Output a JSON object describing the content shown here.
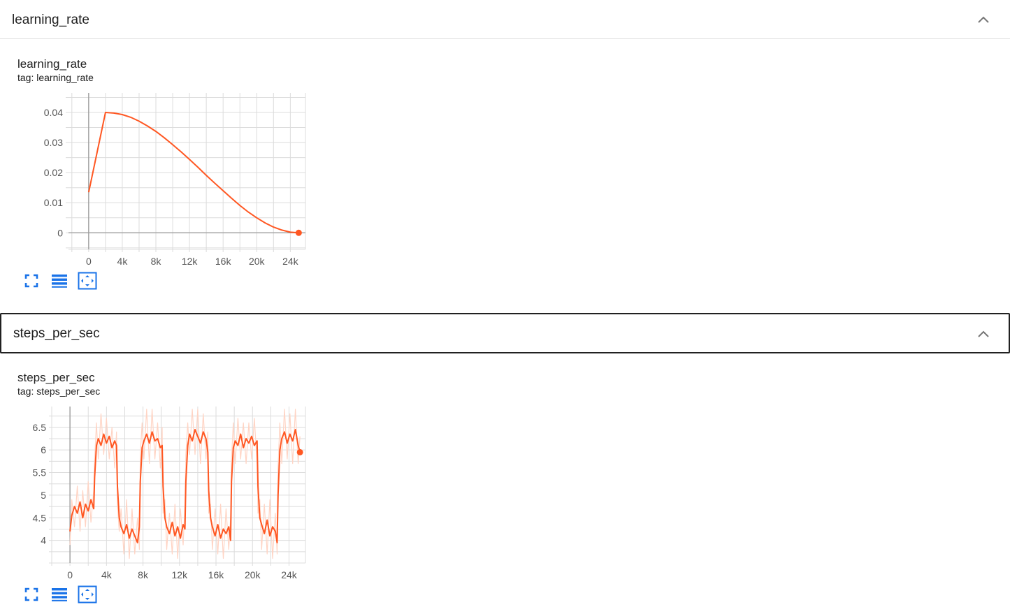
{
  "sections": [
    {
      "header": "learning_rate",
      "card_title": "learning_rate",
      "card_tag": "tag: learning_rate"
    },
    {
      "header": "steps_per_sec",
      "card_title": "steps_per_sec",
      "card_tag": "tag: steps_per_sec"
    }
  ],
  "toolbar_icons": [
    "fullscreen-icon",
    "data-table-icon",
    "fit-domain-icon"
  ],
  "colors": {
    "series": "#ff5722",
    "series_light": "#ffd4c4",
    "grid": "#dcdcdc",
    "axis": "#9e9e9e",
    "toolbar": "#1a73e8",
    "header_line": "#e0e0e0"
  },
  "chart_data": [
    {
      "type": "line",
      "title": "learning_rate",
      "xlim": [
        -2400,
        25800
      ],
      "ylim": [
        -0.0055,
        0.0465
      ],
      "x_ticks": [
        0,
        4000,
        8000,
        12000,
        16000,
        20000,
        24000
      ],
      "x_tick_labels": [
        "0",
        "4k",
        "8k",
        "12k",
        "16k",
        "20k",
        "24k"
      ],
      "y_ticks": [
        0,
        0.01,
        0.02,
        0.03,
        0.04
      ],
      "y_tick_labels": [
        "0",
        "0.01",
        "0.02",
        "0.03",
        "0.04"
      ],
      "grid": true,
      "series": [
        {
          "x": [
            0,
            2000,
            3000,
            4000,
            5000,
            6000,
            7000,
            8000,
            9000,
            10000,
            11000,
            12000,
            13000,
            14000,
            15000,
            16000,
            17000,
            18000,
            19000,
            20000,
            21000,
            22000,
            23000,
            24000,
            25000
          ],
          "y": [
            0.0135,
            0.04,
            0.0398,
            0.0393,
            0.0384,
            0.0371,
            0.0355,
            0.0337,
            0.0316,
            0.0293,
            0.0269,
            0.0244,
            0.0218,
            0.0191,
            0.0165,
            0.014,
            0.0115,
            0.0091,
            0.0069,
            0.005,
            0.0033,
            0.0019,
            0.0009,
            0.0002,
            0.0
          ]
        }
      ]
    },
    {
      "type": "line",
      "title": "steps_per_sec",
      "xlim": [
        -2000,
        25800
      ],
      "ylim": [
        3.5,
        6.96
      ],
      "x_ticks": [
        0,
        4000,
        8000,
        12000,
        16000,
        20000,
        24000
      ],
      "x_tick_labels": [
        "0",
        "4k",
        "8k",
        "12k",
        "16k",
        "20k",
        "24k"
      ],
      "y_ticks": [
        4,
        4.5,
        5,
        5.5,
        6,
        6.5
      ],
      "y_tick_labels": [
        "4",
        "4.5",
        "5",
        "5.5",
        "6",
        "6.5"
      ],
      "grid": true,
      "series": [
        {
          "name": "smoothed",
          "x": [
            0,
            200,
            500,
            800,
            1100,
            1400,
            1700,
            2000,
            2300,
            2600,
            2700,
            2900,
            3100,
            3400,
            3700,
            4000,
            4300,
            4600,
            4900,
            5100,
            5200,
            5400,
            5600,
            5900,
            6200,
            6500,
            6800,
            7100,
            7400,
            7600,
            7700,
            7900,
            8100,
            8400,
            8700,
            9000,
            9300,
            9600,
            9900,
            10100,
            10200,
            10400,
            10600,
            10900,
            11200,
            11500,
            11800,
            12100,
            12400,
            12600,
            12700,
            12900,
            13100,
            13400,
            13700,
            14000,
            14300,
            14600,
            14900,
            15100,
            15200,
            15400,
            15600,
            15900,
            16200,
            16500,
            16800,
            17100,
            17400,
            17600,
            17700,
            17900,
            18100,
            18400,
            18700,
            19000,
            19300,
            19600,
            19900,
            20200,
            20500,
            20600,
            20800,
            21000,
            21300,
            21600,
            21900,
            22200,
            22500,
            22700,
            22800,
            23000,
            23200,
            23500,
            23800,
            24100,
            24400,
            24700,
            25000,
            25200
          ],
          "y": [
            4.2,
            4.55,
            4.75,
            4.6,
            4.85,
            4.5,
            4.8,
            4.65,
            4.9,
            4.7,
            5.4,
            6.1,
            6.25,
            6.1,
            6.35,
            6.15,
            6.3,
            6.05,
            6.2,
            6.1,
            5.2,
            4.5,
            4.3,
            4.15,
            4.35,
            4.05,
            4.25,
            4.1,
            3.95,
            4.3,
            5.3,
            6.05,
            6.2,
            6.35,
            6.15,
            6.4,
            6.2,
            6.25,
            6.05,
            6.1,
            5.2,
            4.5,
            4.3,
            4.15,
            4.4,
            4.1,
            4.3,
            4.05,
            4.35,
            4.25,
            5.3,
            6.1,
            6.35,
            6.2,
            6.45,
            6.3,
            6.15,
            6.4,
            6.25,
            5.95,
            5.1,
            4.5,
            4.3,
            4.1,
            4.35,
            4.05,
            4.25,
            4.15,
            4.3,
            4.0,
            5.3,
            6.05,
            6.2,
            6.1,
            6.35,
            6.05,
            6.25,
            6.15,
            6.3,
            6.1,
            6.2,
            5.2,
            4.5,
            4.35,
            4.15,
            4.45,
            4.1,
            4.3,
            4.2,
            3.95,
            5.0,
            6.0,
            6.25,
            6.4,
            6.15,
            6.35,
            6.2,
            6.45,
            6.1,
            5.95
          ]
        },
        {
          "name": "raw",
          "x": [
            0,
            200,
            500,
            800,
            1100,
            1400,
            1700,
            2000,
            2300,
            2600,
            2700,
            2900,
            3100,
            3400,
            3700,
            4000,
            4300,
            4600,
            4900,
            5100,
            5200,
            5400,
            5600,
            5900,
            6200,
            6500,
            6800,
            7100,
            7400,
            7600,
            7700,
            7900,
            8100,
            8400,
            8700,
            9000,
            9300,
            9600,
            9900,
            10100,
            10200,
            10400,
            10600,
            10900,
            11200,
            11500,
            11800,
            12100,
            12400,
            12600,
            12700,
            12900,
            13100,
            13400,
            13700,
            14000,
            14300,
            14600,
            14900,
            15100,
            15200,
            15400,
            15600,
            15900,
            16200,
            16500,
            16800,
            17100,
            17400,
            17600,
            17700,
            17900,
            18100,
            18400,
            18700,
            19000,
            19300,
            19600,
            19900,
            20200,
            20500,
            20600,
            20800,
            21000,
            21300,
            21600,
            21900,
            22200,
            22500,
            22700,
            22800,
            23000,
            23200,
            23500,
            23800,
            24100,
            24400,
            24700,
            25000,
            25200
          ],
          "y": [
            3.9,
            4.9,
            4.3,
            5.2,
            4.2,
            5.1,
            4.3,
            5.3,
            4.4,
            5.1,
            5.8,
            6.6,
            5.8,
            6.8,
            5.9,
            6.7,
            5.8,
            6.5,
            5.6,
            6.4,
            4.8,
            4.2,
            4.7,
            3.7,
            4.9,
            3.6,
            4.7,
            3.7,
            4.5,
            3.8,
            5.9,
            6.6,
            5.8,
            6.9,
            5.7,
            6.9,
            5.8,
            6.6,
            5.6,
            6.5,
            4.6,
            4.9,
            3.8,
            4.6,
            3.7,
            4.8,
            3.6,
            4.7,
            3.9,
            4.8,
            5.9,
            6.6,
            5.9,
            6.9,
            5.9,
            6.9,
            5.7,
            6.8,
            5.8,
            6.4,
            4.6,
            4.8,
            3.8,
            4.7,
            3.7,
            4.8,
            3.6,
            4.7,
            3.8,
            4.5,
            5.8,
            6.6,
            5.7,
            6.7,
            5.8,
            6.6,
            5.7,
            6.6,
            5.8,
            6.7,
            5.7,
            4.6,
            4.9,
            3.8,
            4.8,
            3.7,
            4.9,
            3.6,
            4.6,
            3.7,
            5.6,
            6.6,
            5.7,
            6.9,
            5.8,
            6.8,
            5.7,
            6.9,
            5.7,
            6.3
          ]
        }
      ]
    }
  ]
}
